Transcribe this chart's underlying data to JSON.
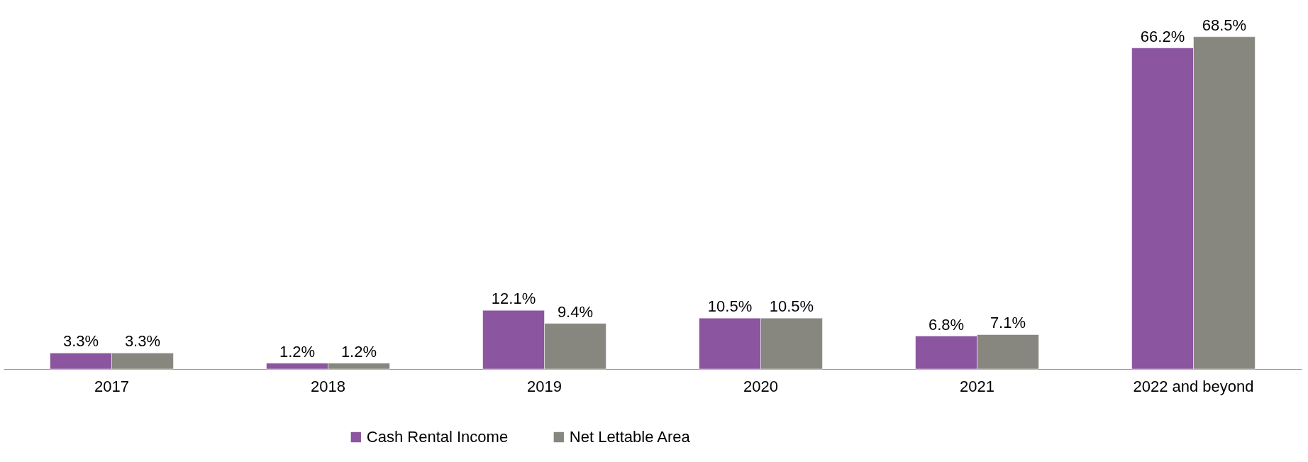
{
  "chart_data": {
    "type": "bar",
    "categories": [
      "2017",
      "2018",
      "2019",
      "2020",
      "2021",
      "2022 and beyond"
    ],
    "series": [
      {
        "name": "Cash Rental Income",
        "color": "#8b55a0",
        "values": [
          3.3,
          1.2,
          12.1,
          10.5,
          6.8,
          66.2
        ],
        "value_labels": [
          "3.3%",
          "1.2%",
          "12.1%",
          "10.5%",
          "6.8%",
          "66.2%"
        ]
      },
      {
        "name": "Net Lettable Area",
        "color": "#87877f",
        "values": [
          3.3,
          1.2,
          9.4,
          10.5,
          7.1,
          68.5
        ],
        "value_labels": [
          "3.3%",
          "1.2%",
          "9.4%",
          "10.5%",
          "7.1%",
          "68.5%"
        ]
      }
    ],
    "grid": false,
    "legend": "bottom"
  }
}
